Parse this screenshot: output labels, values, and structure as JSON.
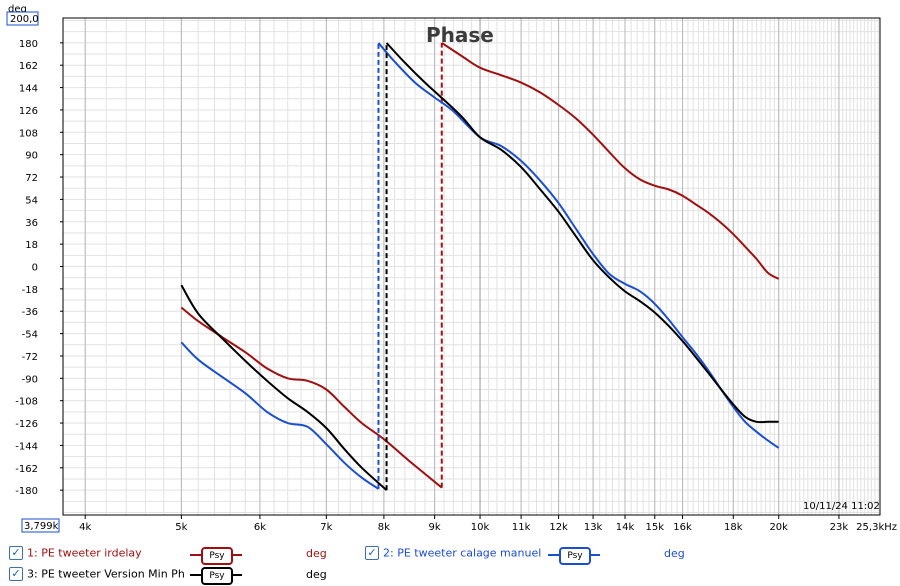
{
  "chart_data": {
    "type": "line",
    "title": "Phase",
    "ylabel": "deg",
    "xlabel": "Hz",
    "x_scale": "log",
    "xlim": [
      3799,
      25300
    ],
    "ylim": [
      -200,
      200
    ],
    "y_ticks": [
      180,
      162,
      144,
      126,
      108,
      90,
      72,
      54,
      36,
      18,
      0,
      -18,
      -36,
      -54,
      -72,
      -90,
      -108,
      -126,
      -144,
      -162,
      -180
    ],
    "x_ticks": [
      {
        "v": 4000,
        "label": "4k"
      },
      {
        "v": 5000,
        "label": "5k"
      },
      {
        "v": 6000,
        "label": "6k"
      },
      {
        "v": 7000,
        "label": "7k"
      },
      {
        "v": 8000,
        "label": "8k"
      },
      {
        "v": 9000,
        "label": "9k"
      },
      {
        "v": 10000,
        "label": "10k"
      },
      {
        "v": 11000,
        "label": "11k"
      },
      {
        "v": 12000,
        "label": "12k"
      },
      {
        "v": 13000,
        "label": "13k"
      },
      {
        "v": 14000,
        "label": "14k"
      },
      {
        "v": 15000,
        "label": "15k"
      },
      {
        "v": 16000,
        "label": "16k"
      },
      {
        "v": 18000,
        "label": "18k"
      },
      {
        "v": 20000,
        "label": "20k"
      },
      {
        "v": 23000,
        "label": "23k"
      },
      {
        "v": 25300,
        "label": "25,3kHz"
      }
    ],
    "y_top_label": "200,0",
    "x_start_label": "3,799k",
    "timestamp": "10/11/24 11:02",
    "series": [
      {
        "name": "1: PE tweeter irdelay",
        "color": "#a01010",
        "x": [
          5000,
          5200,
          5500,
          5800,
          6100,
          6400,
          6700,
          7000,
          7300,
          7600,
          8000,
          8500,
          9150
        ],
        "y": [
          -33,
          -44,
          -57,
          -69,
          -82,
          -90,
          -92,
          -99,
          -113,
          -126,
          -139,
          -157,
          -178
        ],
        "wrap_x": 9150,
        "x2": [
          9150,
          9600,
          10000,
          10500,
          11000,
          11500,
          12000,
          12500,
          13000,
          13500,
          14000,
          14500,
          15000,
          15500,
          16000,
          16500,
          17000,
          17500,
          18000,
          18500,
          19000,
          19500,
          20000
        ],
        "y2": [
          180,
          169,
          160,
          154,
          148,
          140,
          130,
          119,
          106,
          92,
          79,
          70,
          65,
          62,
          57,
          50,
          43,
          35,
          26,
          16,
          6,
          -5,
          -10
        ]
      },
      {
        "name": "2: PE tweeter calage manuel",
        "color": "#1a4fd0",
        "x": [
          5000,
          5200,
          5500,
          5800,
          6100,
          6400,
          6700,
          7000,
          7300,
          7600,
          7900
        ],
        "y": [
          -61,
          -75,
          -89,
          -102,
          -117,
          -126,
          -129,
          -143,
          -158,
          -170,
          -179
        ],
        "wrap_x": 7900,
        "x2": [
          7900,
          8200,
          8600,
          9000,
          9400,
          10000,
          10500,
          11000,
          11500,
          12000,
          12500,
          13000,
          13500,
          14000,
          14500,
          15000,
          15500,
          16000,
          16500,
          17000,
          17500,
          18000,
          18500,
          19000,
          19500,
          20000
        ],
        "y2": [
          180,
          165,
          148,
          136,
          125,
          104,
          97,
          85,
          69,
          51,
          30,
          10,
          -6,
          -14,
          -20,
          -30,
          -43,
          -57,
          -70,
          -84,
          -99,
          -113,
          -125,
          -133,
          -140,
          -146
        ]
      },
      {
        "name": "3: PE tweeter Version Min Ph",
        "color": "#000000",
        "x": [
          5000,
          5200,
          5500,
          5800,
          6100,
          6400,
          6700,
          7000,
          7300,
          7600,
          8050
        ],
        "y": [
          -15,
          -38,
          -58,
          -76,
          -92,
          -106,
          -117,
          -130,
          -147,
          -162,
          -180
        ],
        "wrap_x": 8050,
        "x2": [
          8050,
          8400,
          8800,
          9200,
          9600,
          10000,
          10500,
          11000,
          11500,
          12000,
          12500,
          13000,
          13500,
          14000,
          14500,
          15000,
          15500,
          16000,
          16500,
          17000,
          17500,
          18000,
          18500,
          19000,
          19500,
          20000
        ],
        "y2": [
          180,
          164,
          148,
          134,
          120,
          104,
          94,
          80,
          62,
          44,
          24,
          5,
          -9,
          -20,
          -28,
          -37,
          -48,
          -60,
          -73,
          -86,
          -99,
          -111,
          -121,
          -125,
          -125,
          -125
        ]
      }
    ]
  },
  "legend": [
    {
      "label": "1: PE tweeter irdelay",
      "psy": "Psy",
      "unit": "deg",
      "color": "#a01010"
    },
    {
      "label": "2: PE tweeter calage manuel",
      "psy": "Psy",
      "unit": "deg",
      "color": "#1a4fd0"
    },
    {
      "label": "3: PE tweeter Version Min Ph",
      "psy": "Psy",
      "unit": "deg",
      "color": "#000000"
    }
  ],
  "colors": {
    "grid_major": "#b8b8b8",
    "grid_minor": "#e2e2e2",
    "axis": "#000000"
  }
}
